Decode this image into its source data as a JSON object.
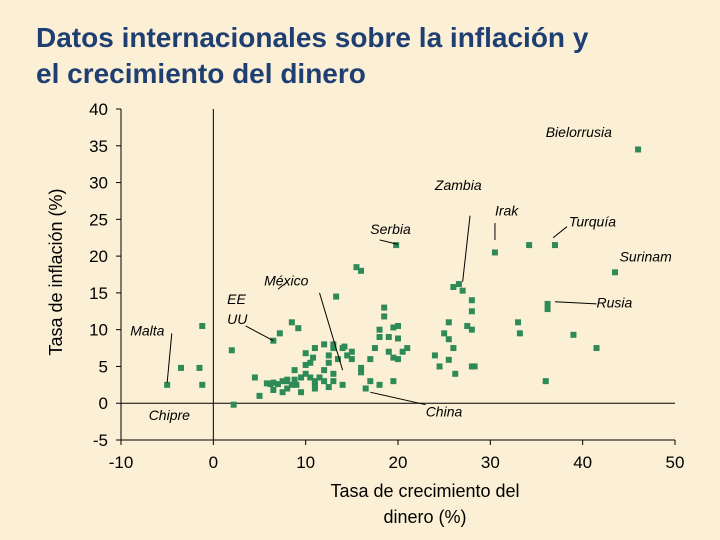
{
  "chart_data": {
    "type": "scatter",
    "title_lines": [
      "Datos internacionales sobre la inflación y",
      "el crecimiento del dinero"
    ],
    "xlabel_lines": [
      "Tasa de crecimiento del",
      "dinero (%)"
    ],
    "ylabel": "Tasa de inflación (%)",
    "xlim": [
      -10,
      50
    ],
    "ylim": [
      -5,
      40
    ],
    "xticks": [
      "-10",
      "0",
      "10",
      "20",
      "30",
      "40",
      "50"
    ],
    "xtick_values": [
      -10,
      0,
      10,
      20,
      30,
      40,
      50
    ],
    "yticks": [
      "40",
      "35",
      "30",
      "25",
      "20",
      "15",
      "10",
      "5",
      "0",
      "-5"
    ],
    "ytick_values": [
      40,
      35,
      30,
      25,
      20,
      15,
      10,
      5,
      0,
      -5
    ],
    "point_color": "#2E8B57",
    "points": [
      [
        46,
        34.5
      ],
      [
        43.5,
        17.8
      ],
      [
        36.2,
        13.5
      ],
      [
        36.2,
        12.8
      ],
      [
        30.5,
        20.5
      ],
      [
        34.2,
        21.5
      ],
      [
        37,
        21.5
      ],
      [
        26.6,
        16.2
      ],
      [
        27,
        15.3
      ],
      [
        26,
        15.8
      ],
      [
        28,
        14
      ],
      [
        28,
        12.5
      ],
      [
        28,
        10
      ],
      [
        27.5,
        10.5
      ],
      [
        25.5,
        11
      ],
      [
        25.5,
        8.7
      ],
      [
        26,
        7.5
      ],
      [
        25.5,
        5.9
      ],
      [
        26.2,
        4
      ],
      [
        24.5,
        5
      ],
      [
        25,
        9.5
      ],
      [
        28,
        5
      ],
      [
        28.3,
        5
      ],
      [
        33,
        11
      ],
      [
        33.2,
        9.5
      ],
      [
        39,
        9.3
      ],
      [
        41.5,
        7.5
      ],
      [
        36,
        3
      ],
      [
        24,
        6.5
      ],
      [
        19.8,
        21.5
      ],
      [
        15.5,
        18.5
      ],
      [
        16,
        18
      ],
      [
        13.3,
        14.5
      ],
      [
        18.5,
        13
      ],
      [
        19.5,
        10.3
      ],
      [
        20,
        10.5
      ],
      [
        18.5,
        11.8
      ],
      [
        18,
        10
      ],
      [
        18,
        9
      ],
      [
        19,
        9
      ],
      [
        20,
        8.8
      ],
      [
        20.5,
        7
      ],
      [
        21,
        7.5
      ],
      [
        19,
        7
      ],
      [
        20,
        6
      ],
      [
        19.5,
        6.2
      ],
      [
        17.5,
        7.5
      ],
      [
        17,
        6
      ],
      [
        16,
        4.8
      ],
      [
        16,
        4.2
      ],
      [
        17,
        3
      ],
      [
        16.5,
        2
      ],
      [
        18,
        2.5
      ],
      [
        19.5,
        3
      ],
      [
        15,
        7
      ],
      [
        15,
        6
      ],
      [
        14,
        7.5
      ],
      [
        13.5,
        6
      ],
      [
        14.2,
        7.7
      ],
      [
        14.5,
        6.5
      ],
      [
        13,
        7.5
      ],
      [
        13,
        8
      ],
      [
        12.5,
        6.5
      ],
      [
        12.5,
        5.5
      ],
      [
        12,
        4.5
      ],
      [
        12,
        3
      ],
      [
        11.5,
        3.5
      ],
      [
        11,
        3
      ],
      [
        11,
        2.5
      ],
      [
        11,
        2
      ],
      [
        10.8,
        6.2
      ],
      [
        10.5,
        5.5
      ],
      [
        10,
        5.2
      ],
      [
        10,
        4
      ],
      [
        10.5,
        3.5
      ],
      [
        10,
        6.8
      ],
      [
        11,
        7.5
      ],
      [
        12,
        8
      ],
      [
        13,
        4
      ],
      [
        13,
        3
      ],
      [
        14,
        2.5
      ],
      [
        9.5,
        3.5
      ],
      [
        8.8,
        4.5
      ],
      [
        9.5,
        1.5
      ],
      [
        8.5,
        11
      ],
      [
        9.2,
        10.2
      ],
      [
        7.2,
        9.5
      ],
      [
        6.5,
        8.5
      ],
      [
        5.8,
        2.7
      ],
      [
        6.2,
        2.6
      ],
      [
        6.5,
        2.8
      ],
      [
        7,
        2.6
      ],
      [
        7.5,
        3
      ],
      [
        8,
        3
      ],
      [
        8.5,
        2.5
      ],
      [
        8,
        2
      ],
      [
        7.5,
        1.5
      ],
      [
        6.5,
        1.8
      ],
      [
        5,
        1
      ],
      [
        4.5,
        3.5
      ],
      [
        8,
        3.2
      ],
      [
        8.8,
        3.2
      ],
      [
        9,
        2.5
      ],
      [
        12.5,
        2.2
      ],
      [
        2,
        7.2
      ],
      [
        2.2,
        -0.2
      ],
      [
        -1.2,
        10.5
      ],
      [
        -1.2,
        2.5
      ],
      [
        -1.5,
        4.8
      ],
      [
        -3.5,
        4.8
      ],
      [
        -5,
        2.5
      ]
    ],
    "annotations": [
      {
        "text": "Bielorrusia",
        "x": 36,
        "y": 36.2,
        "lx1": 0,
        "ly1": 0,
        "lx2": 0,
        "ly2": 0
      },
      {
        "text": "Zambia",
        "x": 24,
        "y": 29,
        "lx1": 0,
        "ly1": 0,
        "lx2": 0,
        "ly2": 0
      },
      {
        "text": "Irak",
        "x": 30.5,
        "y": 25.5,
        "lx1": 30.5,
        "ly1": 24.5,
        "lx2": 30.5,
        "ly2": 22.2
      },
      {
        "text": "Serbia",
        "x": 17,
        "y": 23,
        "lx1": 0,
        "ly1": 0,
        "lx2": 0,
        "ly2": 0
      },
      {
        "text": "Turquía",
        "x": 38.5,
        "y": 24,
        "lx1": 38.3,
        "ly1": 24,
        "lx2": 36.8,
        "ly2": 22.5
      },
      {
        "text": "Surinam",
        "x": 44,
        "y": 19.3,
        "lx1": 0,
        "ly1": 0,
        "lx2": 0,
        "ly2": 0
      },
      {
        "text": "México",
        "x": 5.5,
        "y": 16,
        "lx1": 7,
        "ly1": 15.5,
        "lx2": 8,
        "ly2": 16.5
      },
      {
        "text": "Rusia",
        "x": 41.5,
        "y": 13,
        "lx1": 41.5,
        "ly1": 13.5,
        "lx2": 37,
        "ly2": 13.8
      },
      {
        "text": "EE",
        "x": 1.5,
        "y": 13.5,
        "lx1": 0,
        "ly1": 0,
        "lx2": 0,
        "ly2": 0
      },
      {
        "text": "UU",
        "x": 1.5,
        "y": 10.8,
        "lx1": 0,
        "ly1": 0,
        "lx2": 0,
        "ly2": 0
      },
      {
        "text": "Malta",
        "x": -9,
        "y": 9.2,
        "lx1": 0,
        "ly1": 0,
        "lx2": 0,
        "ly2": 0
      },
      {
        "text": "Chipre",
        "x": -7,
        "y": -2.3,
        "lx1": 0,
        "ly1": 0,
        "lx2": 0,
        "ly2": 0
      },
      {
        "text": "China",
        "x": 23,
        "y": -1.8,
        "lx1": 23,
        "ly1": -0.2,
        "lx2": 17,
        "ly2": 1.5
      }
    ],
    "leader_lines": [
      [
        18,
        22.2,
        20,
        21.6
      ],
      [
        27.8,
        25.5,
        27,
        16.5
      ],
      [
        11.5,
        15,
        14,
        4.5
      ],
      [
        3.5,
        10.5,
        6.5,
        8.5
      ],
      [
        -4.5,
        9.5,
        -5,
        2.8
      ]
    ]
  }
}
